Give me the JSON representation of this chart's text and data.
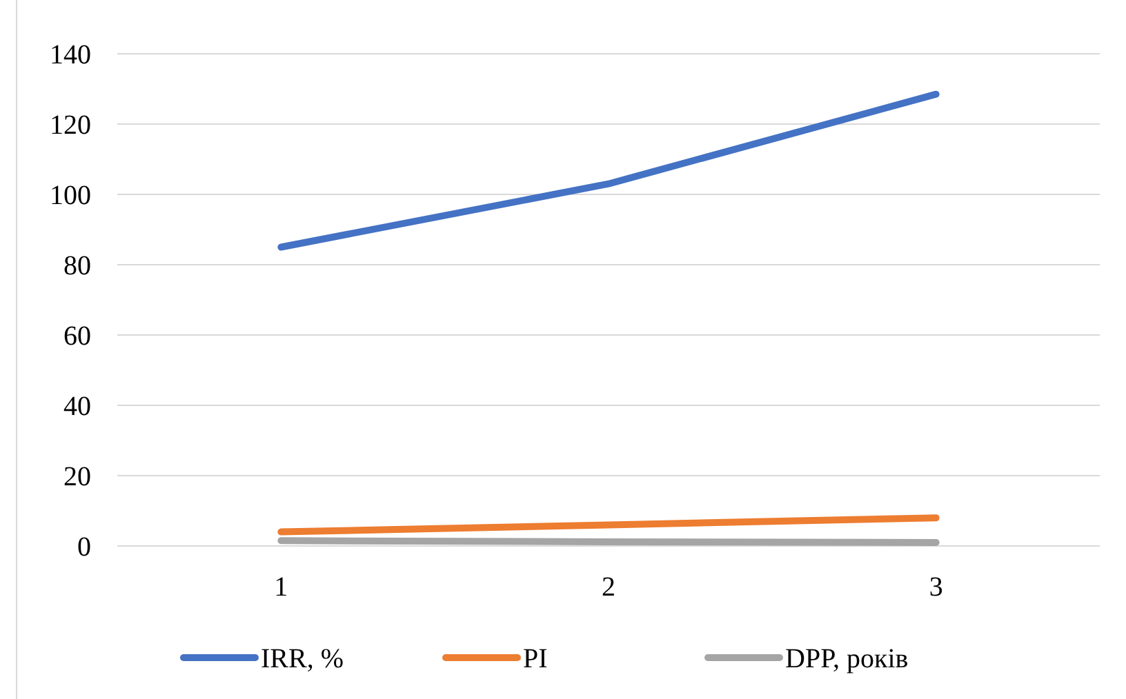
{
  "chart_data": {
    "type": "line",
    "categories": [
      "1",
      "2",
      "3"
    ],
    "series": [
      {
        "name": "IRR, %",
        "color": "#4472c4",
        "values": [
          85,
          103,
          128.5
        ]
      },
      {
        "name": "PI",
        "color": "#ed7d31",
        "values": [
          4,
          6,
          8
        ]
      },
      {
        "name": "DPP, років",
        "color": "#a5a5a5",
        "values": [
          1.5,
          1.2,
          1
        ]
      }
    ],
    "ylim": [
      0,
      140
    ],
    "yticks": [
      0,
      20,
      40,
      60,
      80,
      100,
      120,
      140
    ],
    "grid": "y",
    "legend": "bottom",
    "marker": "none",
    "line_style": "solid"
  }
}
